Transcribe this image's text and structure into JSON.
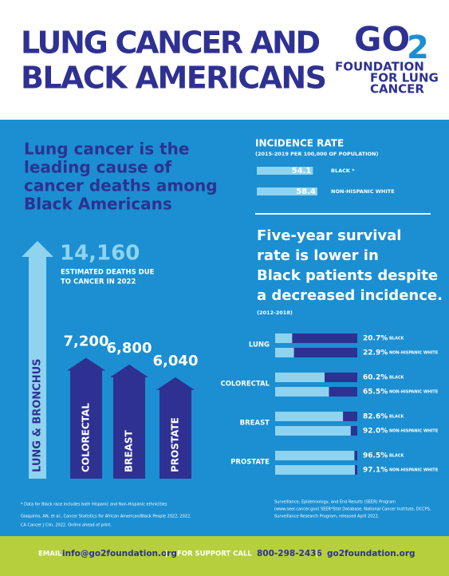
{
  "header": {
    "title_lines": [
      "LUNG CANCER AND",
      "BLACK AMERICANS"
    ],
    "logo": {
      "go": "GO",
      "two": "2",
      "lines": [
        "FOUNDATION",
        "FOR LUNG",
        "CANCER"
      ]
    }
  },
  "headline_lines": [
    "Lung cancer is the",
    "leading cause of",
    "cancer deaths among",
    "Black Americans"
  ],
  "deaths": {
    "caption_lines": [
      "ESTIMATED DEATHS DUE",
      "TO CANCER IN 2022"
    ],
    "items": [
      {
        "name": "LUNG & BRONCHUS",
        "value": 14160,
        "label": "14,160"
      },
      {
        "name": "COLORECTAL",
        "value": 7200,
        "label": "7,200"
      },
      {
        "name": "BREAST",
        "value": 6800,
        "label": "6,800"
      },
      {
        "name": "PROSTATE",
        "value": 6040,
        "label": "6,040"
      }
    ]
  },
  "incidence": {
    "title": "INCIDENCE RATE",
    "subtitle": "(2015-2019 PER 100,000 OF POPULATION)",
    "rows": [
      {
        "value": 54.1,
        "group": "BLACK *"
      },
      {
        "value": 58.4,
        "group": "NON-HISPANIC WHITE"
      }
    ]
  },
  "survival": {
    "heading_lines": [
      "Five-year survival",
      "rate is lower in",
      "Black patients despite",
      "a decreased incidence."
    ],
    "period": "(2012-2018)",
    "cancers": [
      {
        "name": "LUNG",
        "rows": [
          {
            "value": 20.7,
            "label": "20.7%",
            "group": "BLACK"
          },
          {
            "value": 22.9,
            "label": "22.9%",
            "group": "NON-HISPANIC WHITE"
          }
        ]
      },
      {
        "name": "COLORECTAL",
        "rows": [
          {
            "value": 60.2,
            "label": "60.2%",
            "group": "BLACK"
          },
          {
            "value": 65.5,
            "label": "65.5%",
            "group": "NON-HISPANIC WHITE"
          }
        ]
      },
      {
        "name": "BREAST",
        "rows": [
          {
            "value": 82.6,
            "label": "82.6%",
            "group": "BLACK"
          },
          {
            "value": 92.0,
            "label": "92.0%",
            "group": "NON-HISPANIC WHITE"
          }
        ]
      },
      {
        "name": "PROSTATE",
        "rows": [
          {
            "value": 96.5,
            "label": "96.5%",
            "group": "BLACK"
          },
          {
            "value": 97.1,
            "label": "97.1%",
            "group": "NON-HISPANIC WHITE"
          }
        ]
      }
    ]
  },
  "footnotes": {
    "left": [
      "* Data for Black race includes both Hispanic and Non-Hispanic ethnicities",
      "Giaquinto, AN, et al., Cancer Statistics for African American/Black People 2022, 2022.",
      "CA Cancer J Clin, 2022. Online ahead of print."
    ],
    "right": [
      "Surveillance, Epidemiology, and End Results (SEER) Program",
      "(www.seer.cancer.gov) SEER*Stat Database, National Cancer Institute, DCCPS,",
      "Surveillance Research Program, released April 2022."
    ]
  },
  "footer": {
    "email_label": "EMAIL",
    "email": "info@go2foundation.org",
    "separator": "|",
    "support_label": "FOR SUPPORT CALL",
    "phone": "800-298-2436",
    "website": "go2foundation.org"
  }
}
